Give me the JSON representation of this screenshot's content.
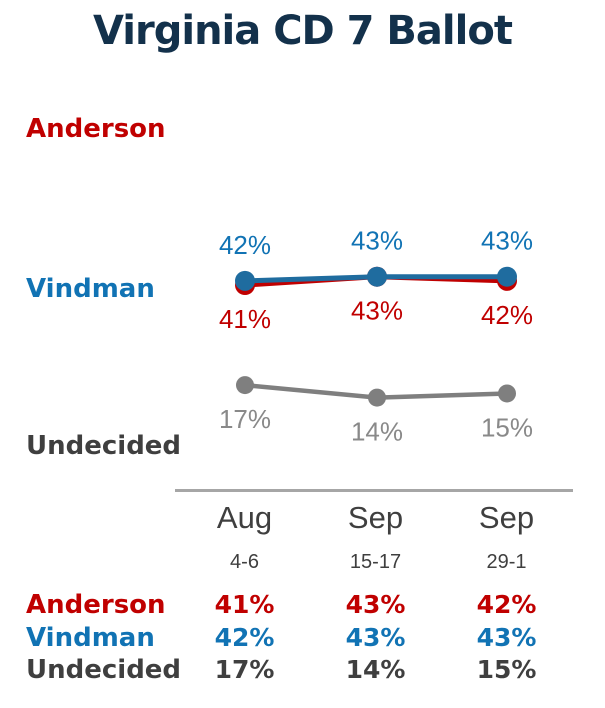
{
  "title": "Virginia CD 7 Ballot",
  "colors": {
    "title": "#13314B",
    "anderson_red": "#C00000",
    "vindman_blue_text": "#1173B4",
    "vindman_blue_line": "#1F6C9F",
    "undecided_gray_line": "#7F7F7F",
    "undecided_gray_label": "#898989",
    "dark_gray_text": "#3F3F3F",
    "divider_gray": "#A6A6A6"
  },
  "chart_data": {
    "type": "line",
    "title": "Virginia CD 7 Ballot",
    "x": [
      "Aug 4-6",
      "Sep 15-17",
      "Sep 29-1"
    ],
    "categories": [
      "Aug 4-6",
      "Sep 15-17",
      "Sep 29-1"
    ],
    "series": [
      {
        "name": "Anderson",
        "values": [
          41,
          43,
          42
        ],
        "color": "#C00000",
        "label_color": "#C00000",
        "label_side": "below"
      },
      {
        "name": "Vindman",
        "values": [
          42,
          43,
          43
        ],
        "color": "#1F6C9F",
        "label_color": "#1173B4",
        "label_side": "above"
      },
      {
        "name": "Undecided",
        "values": [
          17,
          14,
          15
        ],
        "color": "#7F7F7F",
        "label_color": "#898989",
        "label_side": "below"
      }
    ],
    "value_suffix": "%",
    "xlabel": "",
    "ylabel": "",
    "axes": "hidden",
    "grid": false,
    "legend_position": "left",
    "point_labels_visible": true
  },
  "table": {
    "columns": [
      {
        "month": "Aug",
        "dates": "4-6"
      },
      {
        "month": "Sep",
        "dates": "15-17"
      },
      {
        "month": "Sep",
        "dates": "29-1"
      }
    ],
    "rows": [
      {
        "label": "Anderson",
        "color": "#C00000",
        "values": [
          "41%",
          "43%",
          "42%"
        ]
      },
      {
        "label": "Vindman",
        "color": "#1173B4",
        "values": [
          "42%",
          "43%",
          "43%"
        ]
      },
      {
        "label": "Undecided",
        "color": "#3F3F3F",
        "values": [
          "17%",
          "14%",
          "15%"
        ]
      }
    ]
  }
}
